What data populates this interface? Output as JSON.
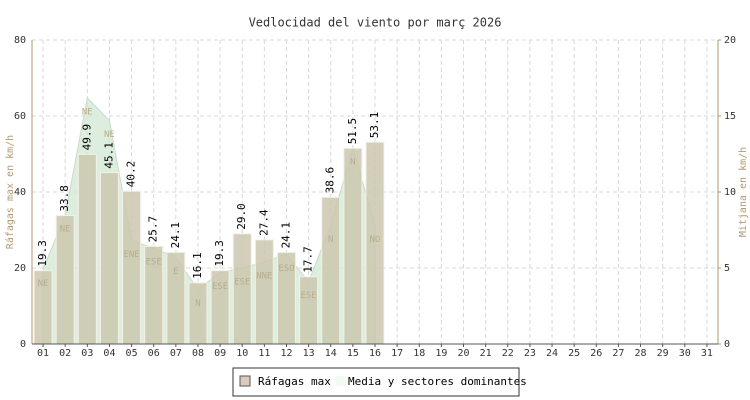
{
  "chart_data": {
    "type": "bar",
    "title": "Vedlocidad del viento por març 2026",
    "y_label": "Ráfagas max en km/h",
    "y2_label": "Mitjana en km/h",
    "categories": [
      "01",
      "02",
      "03",
      "04",
      "05",
      "06",
      "07",
      "08",
      "09",
      "10",
      "11",
      "12",
      "13",
      "14",
      "15",
      "16",
      "17",
      "18",
      "19",
      "20",
      "21",
      "22",
      "23",
      "24",
      "25",
      "26",
      "27",
      "28",
      "29",
      "30",
      "31"
    ],
    "series": [
      {
        "name": "Ráfagas max",
        "color": "#cbc7ae",
        "values": [
          19.3,
          33.8,
          49.9,
          45.1,
          40.2,
          25.7,
          24.1,
          16.1,
          19.3,
          29.0,
          27.4,
          24.1,
          17.7,
          38.6,
          51.5,
          53.1,
          null,
          null,
          null,
          null,
          null,
          null,
          null,
          null,
          null,
          null,
          null,
          null,
          null,
          null,
          null
        ],
        "value_labels": [
          "19.3",
          "33.8",
          "49.9",
          "45.1",
          "40.2",
          "25.7",
          "24.1",
          "16.1",
          "19.3",
          "29.0",
          "27.4",
          "24.1",
          "17.7",
          "38.6",
          "51.5",
          "53.1",
          null,
          null,
          null,
          null,
          null,
          null,
          null,
          null,
          null,
          null,
          null,
          null,
          null,
          null,
          null
        ]
      },
      {
        "name": "Media y sectores dominantes",
        "color": "#d6ead6",
        "axis": "y2",
        "values": [
          4.9,
          8.5,
          16.2,
          14.7,
          6.8,
          6.3,
          5.7,
          3.6,
          4.7,
          5.0,
          5.4,
          5.9,
          4.1,
          7.8,
          12.9,
          7.8,
          null,
          null,
          null,
          null,
          null,
          null,
          null,
          null,
          null,
          null,
          null,
          null,
          null,
          null,
          null
        ],
        "sectors": [
          "NE",
          "NE",
          "NE",
          "NE",
          "ENE",
          "ESE",
          "E",
          "N",
          "ESE",
          "ESE",
          "NNE",
          "ESO",
          "ESE",
          "N",
          "N",
          "NO",
          null,
          null,
          null,
          null,
          null,
          null,
          null,
          null,
          null,
          null,
          null,
          null,
          null,
          null,
          null
        ]
      }
    ],
    "ylim": [
      0,
      80
    ],
    "yticks": [
      0,
      20,
      40,
      60,
      80
    ],
    "y2lim": [
      0,
      20
    ],
    "y2ticks": [
      0,
      5,
      10,
      15,
      20
    ],
    "grid": true,
    "legend": "bottom"
  }
}
